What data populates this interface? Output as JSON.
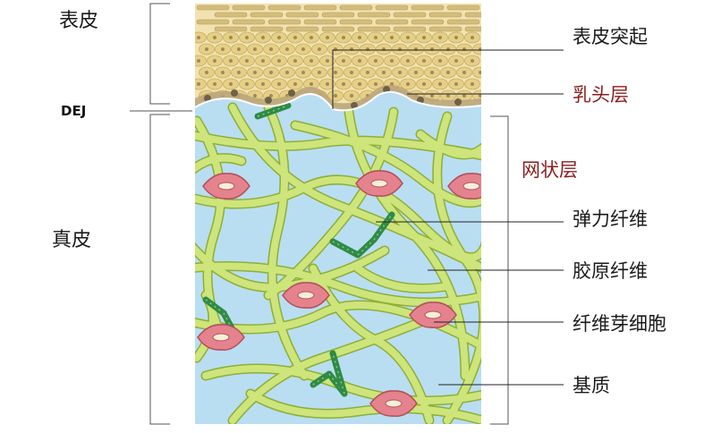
{
  "labels": {
    "epidermis": "表皮",
    "dermis": "真皮",
    "dej": "DEJ",
    "epidermal_ridge": "表皮突起",
    "papillary_layer": "乳头层",
    "reticular_layer": "网状层",
    "elastic_fiber": "弹力纤维",
    "collagen_fiber": "胶原纤维",
    "fibroblast": "纤维芽细胞",
    "ground_substance": "基质"
  },
  "colors": {
    "epidermis_fill": "#f1e3b0",
    "epidermis_cells": "#e6cf86",
    "cell_nucleus": "#a08a5a",
    "dermis_fill": "#b9def2",
    "collagen_fiber": "#cde57a",
    "collagen_edge": "#8fae37",
    "elastic_fiber": "#2f8b45",
    "fibroblast": "#e4838e",
    "fibroblast_nucleus": "#f8efd6",
    "red_label": "#8b1c1c",
    "leader_line": "#222222"
  }
}
